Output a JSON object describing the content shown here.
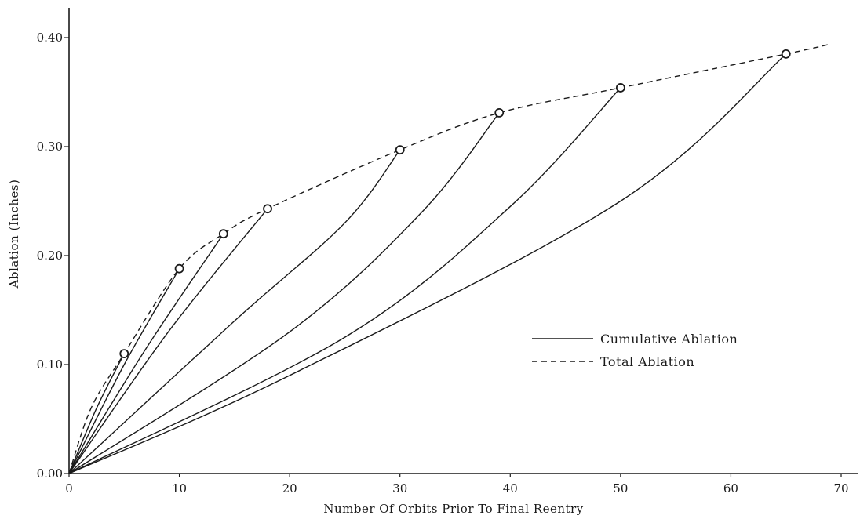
{
  "chart_data": {
    "type": "line",
    "title": "",
    "xlabel": "Number Of Orbits Prior To Final Reentry",
    "ylabel": "Ablation (Inches)",
    "xlim": [
      0,
      70
    ],
    "ylim": [
      0,
      0.4
    ],
    "x_ticks": [
      0,
      10,
      20,
      30,
      40,
      50,
      60,
      70
    ],
    "x_tick_labels": [
      "0",
      "10",
      "20",
      "30",
      "40",
      "50",
      "60",
      "70"
    ],
    "y_ticks": [
      0,
      0.1,
      0.2,
      0.3,
      0.4
    ],
    "y_tick_labels": [
      "0.00",
      "0.10",
      "0.20",
      "0.30",
      "0.40"
    ],
    "grid": false,
    "legend": {
      "placement": "right",
      "entries": [
        {
          "label": "Cumulative Ablation",
          "style": "solid"
        },
        {
          "label": "Total Ablation",
          "style": "dashed"
        }
      ]
    },
    "total_ablation": {
      "x": [
        0,
        2,
        5,
        10,
        14,
        18,
        30,
        39,
        50,
        65,
        69
      ],
      "y": [
        0,
        0.06,
        0.11,
        0.188,
        0.22,
        0.243,
        0.297,
        0.331,
        0.354,
        0.385,
        0.394
      ]
    },
    "markers": {
      "x": [
        5,
        10,
        14,
        18,
        30,
        39,
        50,
        65
      ],
      "y": [
        0.11,
        0.188,
        0.22,
        0.243,
        0.297,
        0.331,
        0.354,
        0.385
      ]
    },
    "cumulative_ablation": [
      {
        "x": [
          0,
          2.5,
          5
        ],
        "y": [
          0,
          0.06,
          0.11
        ]
      },
      {
        "x": [
          0,
          5,
          10
        ],
        "y": [
          0,
          0.1,
          0.188
        ]
      },
      {
        "x": [
          0,
          7,
          14
        ],
        "y": [
          0,
          0.115,
          0.22
        ]
      },
      {
        "x": [
          0,
          9,
          18
        ],
        "y": [
          0,
          0.13,
          0.243
        ]
      },
      {
        "x": [
          0,
          15,
          25,
          30
        ],
        "y": [
          0,
          0.14,
          0.23,
          0.297
        ]
      },
      {
        "x": [
          0,
          20,
          32,
          39
        ],
        "y": [
          0,
          0.13,
          0.24,
          0.331
        ]
      },
      {
        "x": [
          0,
          25,
          40,
          50
        ],
        "y": [
          0,
          0.125,
          0.245,
          0.354
        ]
      },
      {
        "x": [
          0,
          20,
          50,
          65
        ],
        "y": [
          0,
          0.09,
          0.25,
          0.385
        ]
      }
    ],
    "colors": {
      "line": "#1a1a1a",
      "background": "#ffffff"
    }
  }
}
